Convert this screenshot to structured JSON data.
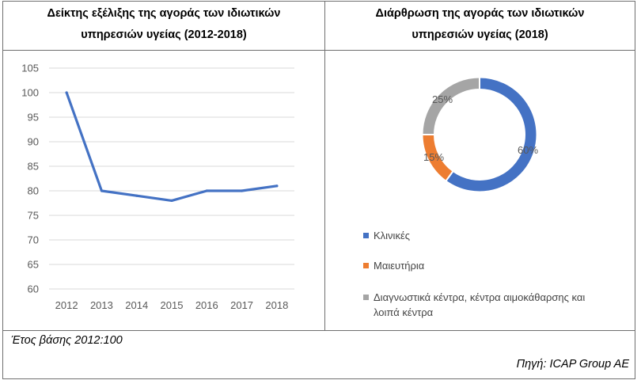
{
  "line_panel": {
    "title_line1": "Δείκτης εξέλιξης της αγοράς των ιδιωτικών",
    "title_line2": "υπηρεσιών υγείας (2012-2018)"
  },
  "donut_panel": {
    "title_line1": "Διάρθρωση της αγοράς των ιδιωτικών",
    "title_line2": "υπηρεσιών υγείας (2018)"
  },
  "footer": {
    "base_note": "Έτος βάσης 2012:100",
    "source": "Πηγή:  ICAP Group AE"
  },
  "colors": {
    "line": "#4472C4",
    "grid": "#D9D9D9",
    "axis_text": "#595959",
    "slice_1": "#4472C4",
    "slice_2": "#ED7D31",
    "slice_3": "#A5A5A5"
  },
  "chart_data": [
    {
      "type": "line",
      "title": "Δείκτης εξέλιξης της αγοράς των ιδιωτικών υπηρεσιών υγείας (2012-2018)",
      "categories": [
        "2012",
        "2013",
        "2014",
        "2015",
        "2016",
        "2017",
        "2018"
      ],
      "series": [
        {
          "name": "Δείκτης",
          "values": [
            100,
            80,
            79,
            78,
            80,
            80,
            81
          ]
        }
      ],
      "yticks": [
        "60",
        "65",
        "70",
        "75",
        "80",
        "85",
        "90",
        "95",
        "100",
        "105"
      ],
      "ylim": [
        60,
        105
      ],
      "grid": true
    },
    {
      "type": "pie",
      "title": "Διάρθρωση της αγοράς των ιδιωτικών υπηρεσιών υγείας (2018)",
      "labels": [
        "Κλινικές",
        "Μαιευτήρια",
        "Διαγνωστικά κέντρα, κέντρα αιμοκάθαρσης και λοιπά κέντρα"
      ],
      "values": [
        60,
        15,
        25
      ],
      "value_labels": [
        "60%",
        "15%",
        "25%"
      ],
      "legend": [
        "Κλινικές",
        "Μαιευτήρια",
        "Διαγνωστικά κέντρα, κέντρα αιμοκάθαρσης και",
        "λοιπά κέντρα"
      ],
      "legend_placement": "bottom"
    }
  ]
}
